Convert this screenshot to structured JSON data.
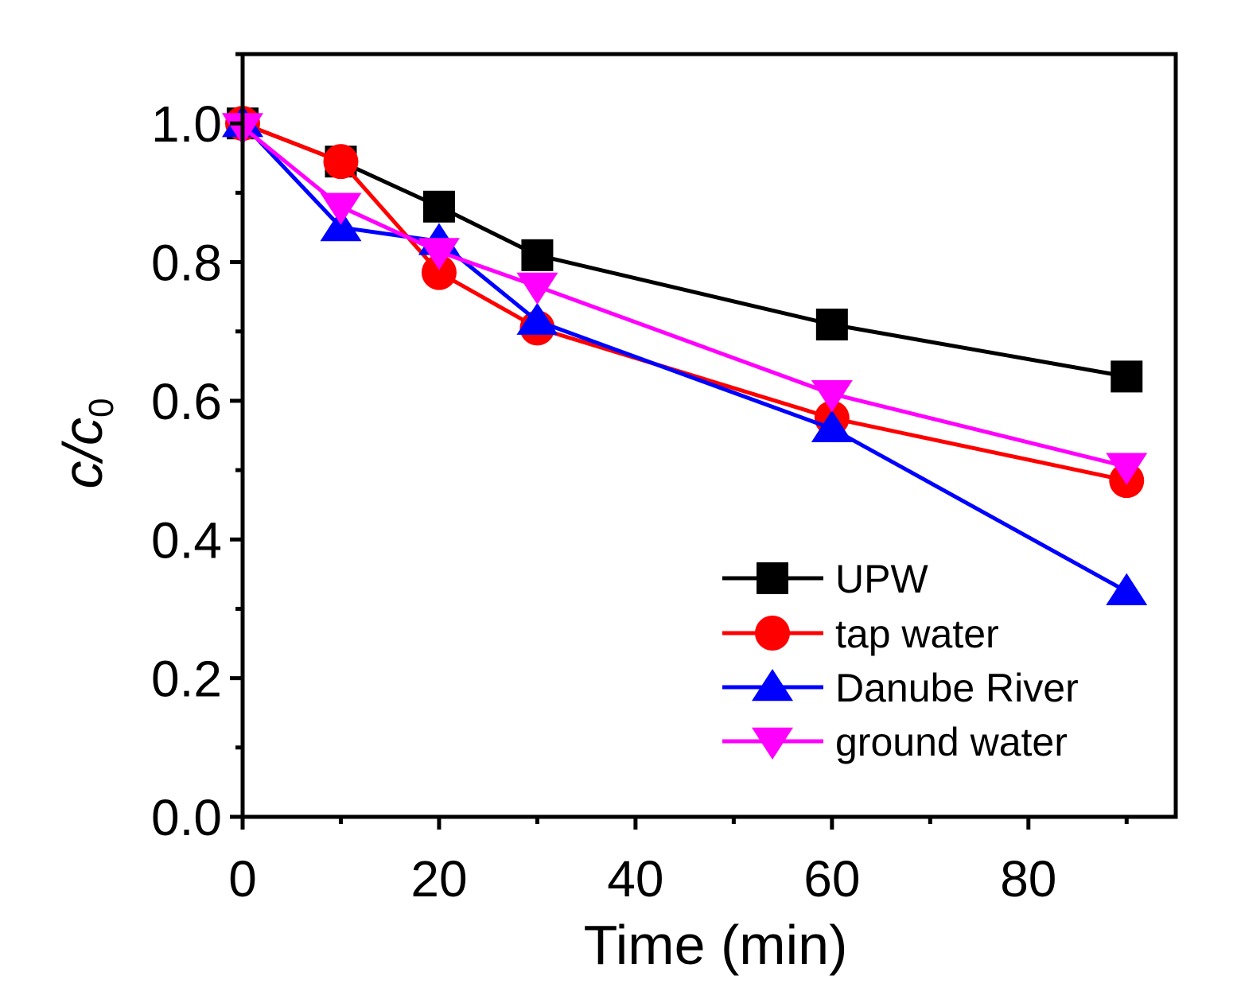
{
  "chart_data": {
    "type": "line",
    "title": "",
    "xlabel": "Time (min)",
    "ylabel_main": "c/c",
    "ylabel_sub": "0",
    "xlim": [
      0,
      95
    ],
    "ylim": [
      0,
      1.1
    ],
    "xticks": [
      0,
      20,
      40,
      60,
      80
    ],
    "xtick_labels": [
      "0",
      "20",
      "40",
      "60",
      "80"
    ],
    "xminor": [
      10,
      30,
      50,
      70,
      90
    ],
    "yticks": [
      0.0,
      0.2,
      0.4,
      0.6,
      0.8,
      1.0
    ],
    "ytick_labels": [
      "0.0",
      "0.2",
      "0.4",
      "0.6",
      "0.8",
      "1.0"
    ],
    "yminor": [
      0.1,
      0.3,
      0.5,
      0.7,
      0.9,
      1.1
    ],
    "legend_position": "lower-right",
    "series": [
      {
        "name": "UPW",
        "color": "#000000",
        "marker": "square",
        "x": [
          0,
          10,
          20,
          30,
          60,
          90
        ],
        "y": [
          1.0,
          0.945,
          0.88,
          0.81,
          0.71,
          0.635
        ]
      },
      {
        "name": "tap water",
        "color": "#ff0000",
        "marker": "circle",
        "x": [
          0,
          10,
          20,
          30,
          60,
          90
        ],
        "y": [
          1.0,
          0.945,
          0.785,
          0.705,
          0.575,
          0.485
        ]
      },
      {
        "name": "Danube River",
        "color": "#0000ff",
        "marker": "triangle-up",
        "x": [
          0,
          10,
          20,
          30,
          60,
          90
        ],
        "y": [
          1.0,
          0.85,
          0.83,
          0.715,
          0.56,
          0.325
        ]
      },
      {
        "name": "ground water",
        "color": "#ff00ff",
        "marker": "triangle-down",
        "x": [
          0,
          10,
          20,
          30,
          60,
          90
        ],
        "y": [
          0.995,
          0.88,
          0.815,
          0.765,
          0.61,
          0.505
        ]
      }
    ]
  }
}
